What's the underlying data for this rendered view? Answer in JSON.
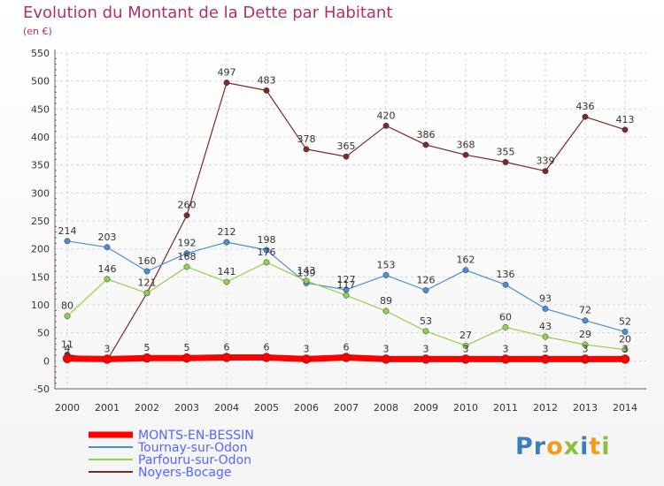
{
  "chart_data": {
    "type": "line",
    "title": "Evolution du Montant de la Dette par Habitant",
    "subtitle": "(en €)",
    "x": [
      "2000",
      "2001",
      "2002",
      "2003",
      "2004",
      "2005",
      "2006",
      "2007",
      "2008",
      "2009",
      "2010",
      "2011",
      "2012",
      "2013",
      "2014"
    ],
    "ylim": [
      -50,
      550
    ],
    "yticks": [
      -50,
      0,
      50,
      100,
      150,
      200,
      250,
      300,
      350,
      400,
      450,
      500,
      550
    ],
    "grid": true,
    "legend_position": "bottom-left",
    "series": [
      {
        "name": "Noyers-Bocage",
        "color": "#7a2a2a",
        "width": 1.2,
        "radius": 3.2,
        "values": [
          11,
          1,
          121,
          260,
          497,
          483,
          378,
          365,
          420,
          386,
          368,
          355,
          339,
          436,
          413
        ],
        "labels": [
          "11",
          "",
          "",
          "260",
          "497",
          "483",
          "378",
          "365",
          "420",
          "386",
          "368",
          "355",
          "339",
          "436",
          "413"
        ]
      },
      {
        "name": "Tournay-sur-Odon",
        "color": "#4a8fd1",
        "width": 1.2,
        "radius": 3.2,
        "values": [
          214,
          203,
          160,
          192,
          212,
          198,
          139,
          127,
          153,
          126,
          162,
          136,
          93,
          72,
          52
        ],
        "labels": [
          "214",
          "203",
          "160",
          "192",
          "212",
          "198",
          "139",
          "127",
          "153",
          "126",
          "162",
          "136",
          "93",
          "72",
          "52"
        ]
      },
      {
        "name": "Parfouru-sur-Odon",
        "color": "#8fd14a",
        "width": 1.2,
        "radius": 3.2,
        "values": [
          80,
          146,
          121,
          168,
          141,
          176,
          143,
          117,
          89,
          53,
          27,
          60,
          43,
          29,
          20
        ],
        "labels": [
          "80",
          "146",
          "121",
          "168",
          "141",
          "176",
          "143",
          "117",
          "89",
          "53",
          "27",
          "60",
          "43",
          "29",
          "20"
        ]
      },
      {
        "name": "MONTS-EN-BESSIN",
        "color": "#ff0000",
        "width": 7,
        "radius": 5,
        "values": [
          4,
          3,
          5,
          5,
          6,
          6,
          3,
          6,
          3,
          3,
          3,
          3,
          3,
          3,
          3
        ],
        "labels": [
          "4",
          "3",
          "5",
          "5",
          "6",
          "6",
          "3",
          "6",
          "3",
          "3",
          "3",
          "3",
          "3",
          "3",
          "3"
        ]
      }
    ],
    "legend": [
      {
        "name": "MONTS-EN-BESSIN",
        "color": "#ff0000",
        "width": 7
      },
      {
        "name": "Tournay-sur-Odon",
        "color": "#4a8fd1",
        "width": 2
      },
      {
        "name": "Parfouru-sur-Odon",
        "color": "#8fd14a",
        "width": 2
      },
      {
        "name": "Noyers-Bocage",
        "color": "#7a2a2a",
        "width": 2
      }
    ]
  },
  "brand": {
    "logo_text": "Proxiti",
    "logo_colors": [
      "#3a7ec1",
      "#f39a1e",
      "#8bbf3c"
    ]
  }
}
